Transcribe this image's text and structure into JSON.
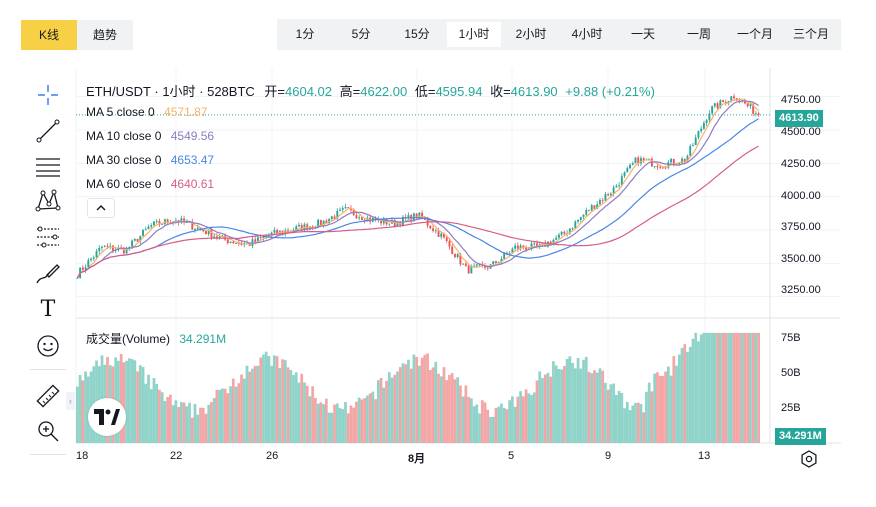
{
  "tabs": {
    "kline": "K线",
    "trend": "趋势"
  },
  "intervals": [
    {
      "label": "1分"
    },
    {
      "label": "5分"
    },
    {
      "label": "15分"
    },
    {
      "label": "1小时",
      "active": true
    },
    {
      "label": "2小时"
    },
    {
      "label": "4小时"
    },
    {
      "label": "一天"
    },
    {
      "label": "一周"
    },
    {
      "label": "一个月"
    },
    {
      "label": "三个月"
    }
  ],
  "tools": [
    "crosshair-icon",
    "trendline-icon",
    "horizontal-lines-icon",
    "pattern-icon",
    "fib-icon",
    "brush-icon",
    "text-icon",
    "emoji-icon",
    "ruler-icon",
    "zoom-in-icon"
  ],
  "legend": {
    "symbol": "ETH/USDT · 1小时 · 528BTC",
    "open_label": "开=",
    "open": "4604.02",
    "high_label": "高=",
    "high": "4622.00",
    "low_label": "低=",
    "low": "4595.94",
    "close_label": "收=",
    "close": "4613.90",
    "change": "+9.88 (+0.21%)",
    "ma5_label": "MA 5 close 0",
    "ma5": "4571.87",
    "ma10_label": "MA 10 close 0",
    "ma10": "4549.56",
    "ma30_label": "MA 30 close 0",
    "ma30": "4653.47",
    "ma60_label": "MA 60 close 0",
    "ma60": "4640.61",
    "volume_label": "成交量(Volume)",
    "volume": "34.291M"
  },
  "colors": {
    "up": "#26a69a",
    "down": "#ef5350",
    "vol_up": "#8fd3c9",
    "vol_down": "#f4a6a6",
    "ma5": "#f6b26b",
    "ma10": "#8e7cc3",
    "ma30": "#4a86e8",
    "ma60": "#d85c8a"
  },
  "price_axis": {
    "ticks": [
      "4750.00",
      "4500.00",
      "4250.00",
      "4000.00",
      "3750.00",
      "3500.00",
      "3250.00"
    ],
    "last_price": "4613.90"
  },
  "volume_axis": {
    "ticks": [
      "75B",
      "50B",
      "25B"
    ],
    "last_volume": "34.291M"
  },
  "time_axis": [
    "18",
    "22",
    "26",
    "8月",
    "5",
    "9",
    "13"
  ],
  "chart_data": {
    "type": "candlestick",
    "key_points": [
      {
        "x": "18",
        "y": 3420
      },
      {
        "x": "19",
        "y": 3620
      },
      {
        "x": "20",
        "y": 3600
      },
      {
        "x": "21",
        "y": 3780
      },
      {
        "x": "22",
        "y": 3830
      },
      {
        "x": "23",
        "y": 3760
      },
      {
        "x": "24",
        "y": 3680
      },
      {
        "x": "25",
        "y": 3640
      },
      {
        "x": "26",
        "y": 3720
      },
      {
        "x": "27",
        "y": 3760
      },
      {
        "x": "28",
        "y": 3800
      },
      {
        "x": "29",
        "y": 3900
      },
      {
        "x": "30",
        "y": 3830
      },
      {
        "x": "31",
        "y": 3800
      },
      {
        "x": "8月",
        "y": 3860
      },
      {
        "x": "2",
        "y": 3700
      },
      {
        "x": "3",
        "y": 3450
      },
      {
        "x": "4",
        "y": 3480
      },
      {
        "x": "5",
        "y": 3620
      },
      {
        "x": "6",
        "y": 3620
      },
      {
        "x": "7",
        "y": 3720
      },
      {
        "x": "8",
        "y": 3900
      },
      {
        "x": "9",
        "y": 4050
      },
      {
        "x": "10",
        "y": 4280
      },
      {
        "x": "11",
        "y": 4240
      },
      {
        "x": "12",
        "y": 4280
      },
      {
        "x": "13",
        "y": 4650
      },
      {
        "x": "14",
        "y": 4760
      },
      {
        "x": "15",
        "y": 4614
      }
    ],
    "yrange": [
      3150,
      4800
    ],
    "volume_range": [
      0,
      80
    ]
  }
}
